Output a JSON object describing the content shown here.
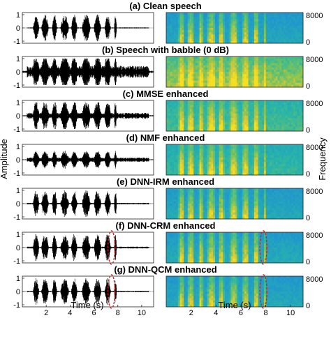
{
  "chart_data": {
    "type": "figure-grid",
    "rows": [
      {
        "label": "(a) Clean speech",
        "style": "clean",
        "noise": 0.04,
        "highlight": false
      },
      {
        "label": "(b) Speech with babble (0 dB)",
        "style": "noisy",
        "noise": 0.45,
        "highlight": false
      },
      {
        "label": "(c) MMSE enhanced",
        "style": "mmse",
        "noise": 0.22,
        "highlight": false
      },
      {
        "label": "(d) NMF enhanced",
        "style": "nmf",
        "noise": 0.16,
        "highlight": false
      },
      {
        "label": "(e) DNN-IRM enhanced",
        "style": "irm",
        "noise": 0.06,
        "highlight": false
      },
      {
        "label": "(f) DNN-CRM enhanced",
        "style": "crm",
        "noise": 0.07,
        "highlight": true
      },
      {
        "label": "(g) DNN-QCM enhanced",
        "style": "qcm",
        "noise": 0.05,
        "highlight": true
      }
    ],
    "waveform": {
      "ylabel": "Amplitude",
      "xlabel": "Time (s)",
      "yticks": [
        "1",
        "0",
        "-1"
      ],
      "xticks": [
        "2",
        "4",
        "6",
        "8",
        "10"
      ],
      "xlim": [
        0,
        11
      ],
      "ylim": [
        -1,
        1
      ]
    },
    "spectrogram": {
      "ylabel": "Frequency",
      "xlabel": "Time (s)",
      "yticks": [
        "8000",
        "0"
      ],
      "xticks": [
        "2",
        "4",
        "6",
        "8",
        "10"
      ],
      "xlim": [
        0,
        11
      ],
      "ylim": [
        0,
        8000
      ]
    },
    "highlight_time_s": 7.7,
    "colors": {
      "waveform": "#000000",
      "highlight": "#cc2222",
      "colormap": [
        "#2a3da8",
        "#1f8fd6",
        "#27b5a9",
        "#7cc35a",
        "#d6c93a",
        "#f4e020"
      ]
    }
  }
}
